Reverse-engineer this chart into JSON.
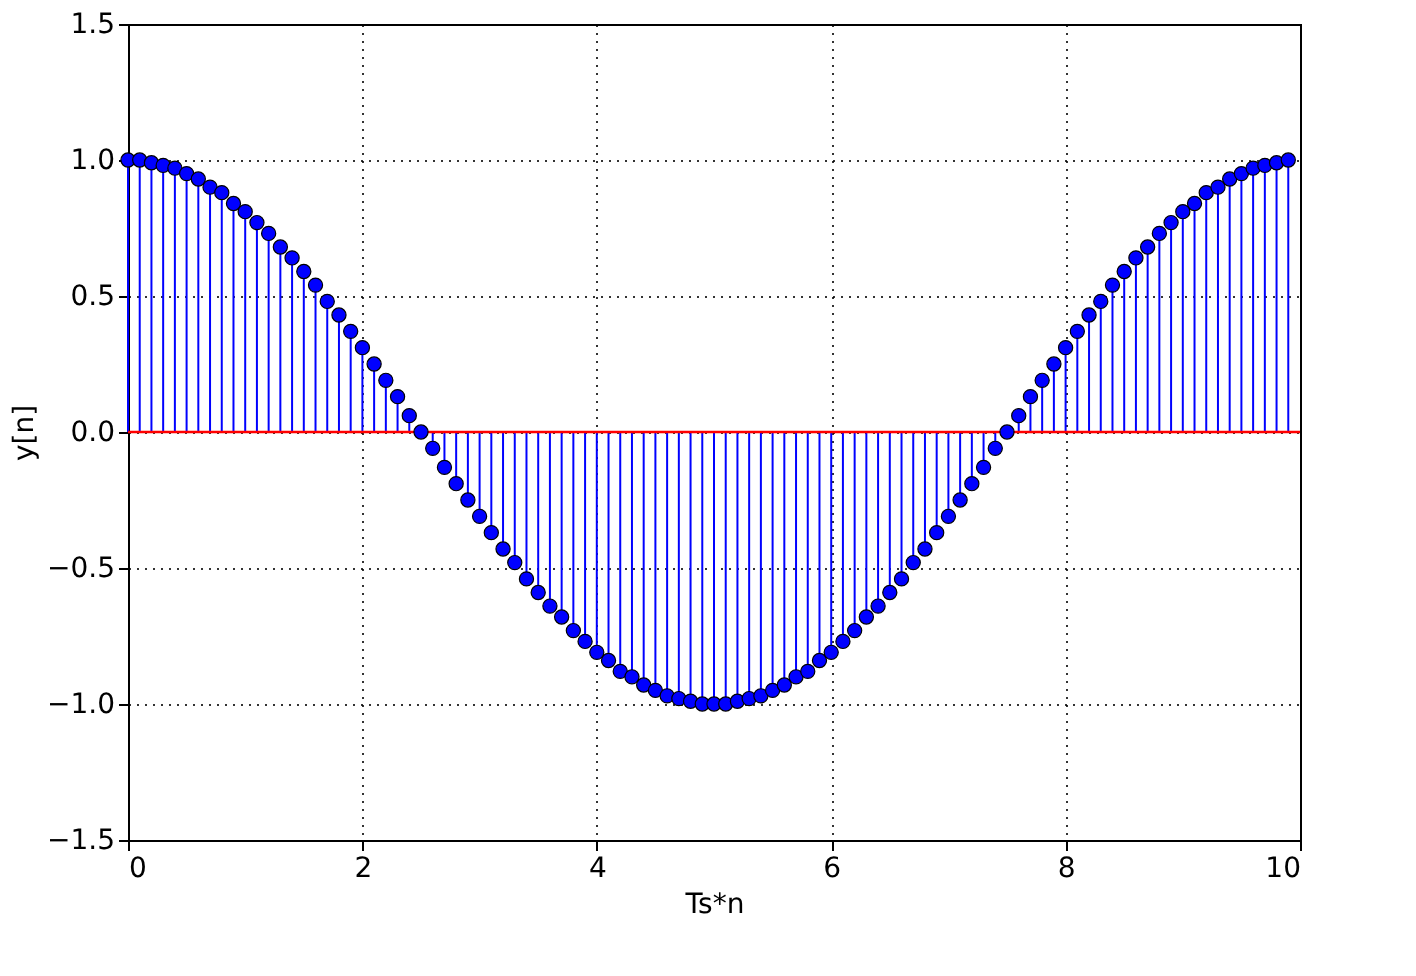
{
  "chart_data": {
    "type": "lollipop",
    "xlabel": "Ts*n",
    "ylabel": "y[n]",
    "x": [
      0.0,
      0.1,
      0.2,
      0.3,
      0.4,
      0.5,
      0.6,
      0.7,
      0.8,
      0.9,
      1.0,
      1.1,
      1.2,
      1.3,
      1.4,
      1.5,
      1.6,
      1.7,
      1.8,
      1.9,
      2.0,
      2.1,
      2.2,
      2.3,
      2.4,
      2.5,
      2.6,
      2.7,
      2.8,
      2.9,
      3.0,
      3.1,
      3.2,
      3.3,
      3.4,
      3.5,
      3.6,
      3.7,
      3.8,
      3.9,
      4.0,
      4.1,
      4.2,
      4.3,
      4.4,
      4.5,
      4.6,
      4.7,
      4.8,
      4.9,
      5.0,
      5.1,
      5.2,
      5.3,
      5.4,
      5.5,
      5.6,
      5.7,
      5.8,
      5.9,
      6.0,
      6.1,
      6.2,
      6.3,
      6.4,
      6.5,
      6.6,
      6.7,
      6.8,
      6.9,
      7.0,
      7.1,
      7.2,
      7.3,
      7.4,
      7.5,
      7.6,
      7.7,
      7.8,
      7.9,
      8.0,
      8.1,
      8.2,
      8.3,
      8.4,
      8.5,
      8.6,
      8.7,
      8.8,
      8.9,
      9.0,
      9.1,
      9.2,
      9.3,
      9.4,
      9.5,
      9.6,
      9.7,
      9.8,
      9.9
    ],
    "series": [
      {
        "color": "#0000ff",
        "values": [
          1.0,
          1.0,
          0.99,
          0.98,
          0.97,
          0.95,
          0.93,
          0.9,
          0.88,
          0.84,
          0.81,
          0.77,
          0.73,
          0.68,
          0.64,
          0.59,
          0.54,
          0.48,
          0.43,
          0.37,
          0.31,
          0.25,
          0.19,
          0.13,
          0.06,
          0.0,
          -0.06,
          -0.13,
          -0.19,
          -0.25,
          -0.31,
          -0.37,
          -0.43,
          -0.48,
          -0.54,
          -0.59,
          -0.64,
          -0.68,
          -0.73,
          -0.77,
          -0.81,
          -0.84,
          -0.88,
          -0.9,
          -0.93,
          -0.95,
          -0.97,
          -0.98,
          -0.99,
          -1.0,
          -1.0,
          -1.0,
          -0.99,
          -0.98,
          -0.97,
          -0.95,
          -0.93,
          -0.9,
          -0.88,
          -0.84,
          -0.81,
          -0.77,
          -0.73,
          -0.68,
          -0.64,
          -0.59,
          -0.54,
          -0.48,
          -0.43,
          -0.37,
          -0.31,
          -0.25,
          -0.19,
          -0.13,
          -0.06,
          0.0,
          0.06,
          0.13,
          0.19,
          0.25,
          0.31,
          0.37,
          0.43,
          0.48,
          0.54,
          0.59,
          0.64,
          0.68,
          0.73,
          0.77,
          0.81,
          0.84,
          0.88,
          0.9,
          0.93,
          0.95,
          0.97,
          0.98,
          0.99,
          1.0
        ]
      }
    ],
    "ref_lines": [
      {
        "axis": "y",
        "value": 0,
        "color": "#ff0000"
      }
    ],
    "xlim": [
      0,
      10
    ],
    "xticks": [
      0,
      2,
      4,
      6,
      8,
      10
    ],
    "ylim": [
      -1.5,
      1.5
    ],
    "yticks": [
      -1.5,
      {
        "value": -1,
        "label": "−1.0"
      },
      -0.5,
      {
        "value": 0,
        "label": "0.0"
      },
      0.5,
      {
        "value": 1,
        "label": "1.0"
      },
      1.5
    ],
    "grid": true,
    "marker": "circle"
  }
}
